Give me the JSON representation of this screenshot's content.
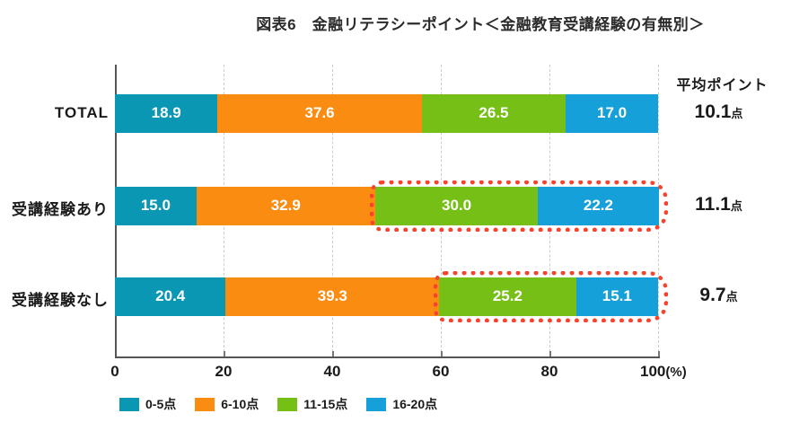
{
  "title": "図表6　金融リテラシーポイント＜金融教育受講経験の有無別＞",
  "chart_data": {
    "type": "bar",
    "orientation": "horizontal",
    "stacked": true,
    "grid": true,
    "legend_position": "bottom",
    "categories": [
      "TOTAL",
      "受講経験あり",
      "受講経験なし"
    ],
    "series": [
      {
        "name": "0-5点",
        "color": "#0A97B4",
        "values": [
          18.9,
          15.0,
          20.4
        ]
      },
      {
        "name": "6-10点",
        "color": "#FB8C12",
        "values": [
          37.6,
          32.9,
          39.3
        ]
      },
      {
        "name": "11-15点",
        "color": "#76BF16",
        "values": [
          26.5,
          30.0,
          25.2
        ]
      },
      {
        "name": "16-20点",
        "color": "#16A0D9",
        "values": [
          17.0,
          22.2,
          15.1
        ]
      }
    ],
    "value_label_color": "#ffffff",
    "x_axis": {
      "range": [
        0,
        100
      ],
      "ticks": [
        0,
        20,
        40,
        60,
        80,
        100
      ],
      "unit": "(%)"
    },
    "averages": {
      "header": "平均ポイント",
      "values": [
        "10.1",
        "11.1",
        "9.7"
      ],
      "suffix": "点"
    },
    "highlights": {
      "row_indexes": [
        1,
        2
      ],
      "from_series_index": 2,
      "color": "#F9422C"
    }
  }
}
